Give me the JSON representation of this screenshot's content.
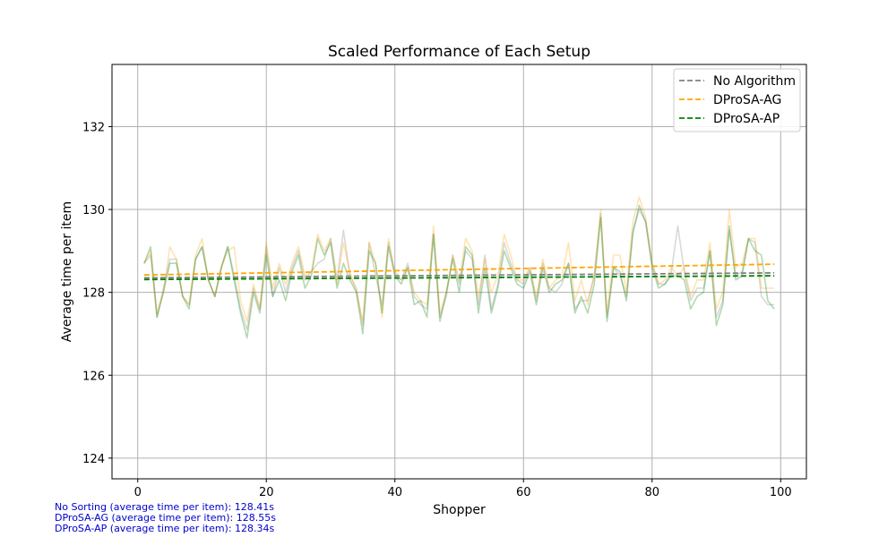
{
  "footnotes": {
    "line1": "No Sorting (average time per item): 128.41s",
    "line2": "DProSA-AG (average time per item): 128.55s",
    "line3": "DProSA-AP (average time per item): 128.34s"
  },
  "chart_data": {
    "type": "line",
    "title": "Scaled Performance of Each Setup",
    "xlabel": "Shopper",
    "ylabel": "Average time per item",
    "xlim": [
      -4,
      104
    ],
    "ylim": [
      123.5,
      133.5
    ],
    "xticks": [
      0,
      20,
      40,
      60,
      80,
      100
    ],
    "yticks": [
      124,
      126,
      128,
      130,
      132
    ],
    "grid": true,
    "legend_position": "top-right",
    "x": [
      1,
      2,
      3,
      4,
      5,
      6,
      7,
      8,
      9,
      10,
      11,
      12,
      13,
      14,
      15,
      16,
      17,
      18,
      19,
      20,
      21,
      22,
      23,
      24,
      25,
      26,
      27,
      28,
      29,
      30,
      31,
      32,
      33,
      34,
      35,
      36,
      37,
      38,
      39,
      40,
      41,
      42,
      43,
      44,
      45,
      46,
      47,
      48,
      49,
      50,
      51,
      52,
      53,
      54,
      55,
      56,
      57,
      58,
      59,
      60,
      61,
      62,
      63,
      64,
      65,
      66,
      67,
      68,
      69,
      70,
      71,
      72,
      73,
      74,
      75,
      76,
      77,
      78,
      79,
      80,
      81,
      82,
      83,
      84,
      85,
      86,
      87,
      88,
      89,
      90,
      91,
      92,
      93,
      94,
      95,
      96,
      97,
      98,
      99
    ],
    "series": [
      {
        "name": "No Algorithm",
        "color": "#808080",
        "values": [
          128.7,
          128.9,
          127.4,
          128.1,
          128.8,
          128.8,
          127.9,
          127.7,
          128.8,
          129.1,
          128.3,
          127.9,
          128.6,
          129.1,
          128.4,
          127.6,
          127.1,
          128.1,
          127.6,
          129.1,
          127.9,
          128.6,
          128.0,
          128.6,
          129.0,
          128.3,
          128.5,
          128.7,
          128.8,
          129.3,
          128.3,
          129.5,
          128.4,
          128.1,
          127.2,
          129.2,
          128.4,
          127.7,
          129.2,
          128.5,
          128.3,
          128.7,
          127.9,
          127.7,
          127.6,
          129.4,
          127.4,
          127.9,
          128.9,
          128.2,
          129.0,
          128.8,
          127.7,
          128.9,
          127.6,
          128.2,
          129.2,
          128.7,
          128.3,
          128.2,
          128.6,
          127.8,
          128.7,
          128.1,
          128.0,
          128.2,
          128.7,
          127.6,
          127.8,
          127.8,
          128.4,
          129.9,
          127.4,
          128.6,
          128.4,
          127.9,
          129.5,
          130.0,
          129.7,
          128.7,
          128.2,
          128.2,
          128.5,
          129.6,
          128.5,
          127.8,
          128.1,
          128.1,
          129.0,
          127.4,
          127.8,
          129.5,
          128.4,
          128.5,
          129.3,
          129.2,
          127.9,
          127.7,
          127.7
        ],
        "trend": [
          128.35,
          128.47
        ]
      },
      {
        "name": "DProSA-AG",
        "color": "#ffa500",
        "values": [
          128.7,
          129.0,
          127.5,
          128.0,
          129.1,
          128.8,
          127.9,
          127.7,
          128.9,
          129.3,
          128.3,
          127.9,
          128.6,
          129.0,
          129.1,
          127.8,
          127.3,
          128.2,
          127.6,
          129.2,
          128.1,
          128.7,
          128.2,
          128.7,
          129.1,
          128.4,
          128.5,
          129.4,
          129.0,
          129.3,
          128.2,
          129.2,
          128.5,
          128.0,
          127.3,
          129.2,
          128.7,
          127.4,
          129.3,
          128.4,
          128.3,
          128.6,
          128.0,
          127.8,
          127.7,
          129.6,
          127.5,
          128.0,
          128.9,
          128.3,
          129.3,
          129.0,
          127.9,
          128.8,
          128.0,
          128.4,
          129.4,
          128.9,
          128.3,
          128.3,
          128.6,
          127.9,
          128.8,
          128.1,
          128.3,
          128.4,
          129.2,
          127.8,
          128.3,
          127.7,
          128.4,
          130.0,
          127.5,
          128.9,
          128.9,
          128.0,
          129.7,
          130.3,
          129.8,
          128.7,
          128.2,
          128.3,
          128.6,
          128.4,
          128.6,
          127.9,
          128.3,
          128.3,
          129.2,
          127.6,
          128.0,
          130.0,
          128.6,
          128.7,
          129.3,
          129.3,
          128.1,
          128.1,
          128.1
        ],
        "trend": [
          128.42,
          128.68
        ]
      },
      {
        "name": "DProSA-AP",
        "color": "#008000",
        "values": [
          128.7,
          129.1,
          127.4,
          128.0,
          128.7,
          128.7,
          127.9,
          127.6,
          128.8,
          129.1,
          128.3,
          127.9,
          128.6,
          129.1,
          128.3,
          127.5,
          126.9,
          128.0,
          127.5,
          128.9,
          127.9,
          128.3,
          127.8,
          128.5,
          128.9,
          128.1,
          128.4,
          129.3,
          128.9,
          129.2,
          128.1,
          128.7,
          128.3,
          128.0,
          127.0,
          129.0,
          128.7,
          127.5,
          129.1,
          128.4,
          128.2,
          128.6,
          127.7,
          127.8,
          127.4,
          129.4,
          127.3,
          128.0,
          128.8,
          128.0,
          129.1,
          128.9,
          127.5,
          128.6,
          127.5,
          128.1,
          129.0,
          128.6,
          128.2,
          128.1,
          128.5,
          127.7,
          128.6,
          128.0,
          128.2,
          128.3,
          128.7,
          127.5,
          127.9,
          127.5,
          128.2,
          129.8,
          127.3,
          128.6,
          128.5,
          127.8,
          129.4,
          130.1,
          129.7,
          128.6,
          128.1,
          128.2,
          128.4,
          128.4,
          128.3,
          127.6,
          127.9,
          128.0,
          129.0,
          127.2,
          127.7,
          129.6,
          128.3,
          128.4,
          129.3,
          129.0,
          128.9,
          127.8,
          127.6
        ],
        "trend": [
          128.31,
          128.4
        ]
      }
    ]
  }
}
